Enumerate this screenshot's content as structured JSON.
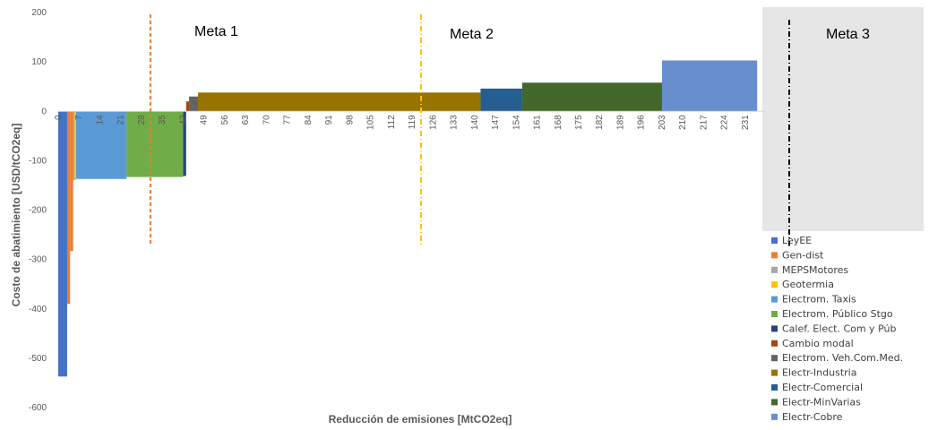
{
  "chart_data": {
    "type": "bar",
    "subtype": "marginal-abatement-cost-curve",
    "xlabel": "Reducción de emisiones [MtCO2eq]",
    "ylabel": "Costo de abatimiento [USD/tCO2eq]",
    "ylim": [
      -600,
      200
    ],
    "yticks": [
      200,
      100,
      0,
      -100,
      -200,
      -300,
      -400,
      -500,
      -600
    ],
    "xlim": [
      0,
      238
    ],
    "xticks": [
      0,
      7,
      14,
      21,
      28,
      35,
      42,
      49,
      56,
      63,
      70,
      77,
      84,
      91,
      98,
      105,
      112,
      119,
      126,
      133,
      140,
      147,
      154,
      161,
      168,
      175,
      182,
      189,
      196,
      203,
      210,
      217,
      224,
      231
    ],
    "grid": false,
    "legend_position": "bottom-right",
    "series": [
      {
        "name": "LeyEE",
        "x_start": 0,
        "x_end": 3,
        "value": -537,
        "color": "#4472C4"
      },
      {
        "name": "Gen-dist",
        "x_start": 3,
        "x_end": 4,
        "value": -390,
        "color": "#ED7D31"
      },
      {
        "name": "Gen-dist",
        "x_start": 4,
        "x_end": 5,
        "value": -283,
        "color": "#ED7D31"
      },
      {
        "name": "MEPSMotores",
        "x_start": 5,
        "x_end": 5.5,
        "value": -140,
        "color": "#A5A5A5"
      },
      {
        "name": "Geotermia",
        "x_start": 5.5,
        "x_end": 6,
        "value": -139,
        "color": "#FFC000"
      },
      {
        "name": "Electrom. Taxis",
        "x_start": 6,
        "x_end": 23,
        "value": -137,
        "color": "#5B9BD5"
      },
      {
        "name": "Electrom. Público Stgo",
        "x_start": 23,
        "x_end": 42,
        "value": -133,
        "color": "#70AD47"
      },
      {
        "name": "Calef. Elect. Com y Púb",
        "x_start": 42,
        "x_end": 43,
        "value": -131,
        "color": "#264478"
      },
      {
        "name": "Cambio modal",
        "x_start": 43,
        "x_end": 44,
        "value": 20,
        "color": "#9E480E"
      },
      {
        "name": "Electrom. Veh.Com.Med.",
        "x_start": 44,
        "x_end": 47,
        "value": 30,
        "color": "#636363"
      },
      {
        "name": "Electr-Industria",
        "x_start": 47,
        "x_end": 142,
        "value": 38,
        "color": "#997300"
      },
      {
        "name": "Electr-Comercial",
        "x_start": 142,
        "x_end": 156,
        "value": 46,
        "color": "#255E91"
      },
      {
        "name": "Electr-MinVarias",
        "x_start": 156,
        "x_end": 203,
        "value": 58,
        "color": "#43682B"
      },
      {
        "name": "Electr-Cobre",
        "x_start": 203,
        "x_end": 235,
        "value": 103,
        "color": "#698ED0"
      }
    ],
    "legend": [
      {
        "name": "LeyEE",
        "color": "#4472C4"
      },
      {
        "name": "Gen-dist",
        "color": "#ED7D31"
      },
      {
        "name": "MEPSMotores",
        "color": "#A5A5A5"
      },
      {
        "name": "Geotermia",
        "color": "#FFC000"
      },
      {
        "name": "Electrom. Taxis",
        "color": "#5B9BD5"
      },
      {
        "name": "Electrom. Público Stgo",
        "color": "#70AD47"
      },
      {
        "name": "Calef. Elect. Com y Púb",
        "color": "#264478"
      },
      {
        "name": "Cambio modal",
        "color": "#9E480E"
      },
      {
        "name": "Electrom. Veh.Com.Med.",
        "color": "#636363"
      },
      {
        "name": "Electr-Industria",
        "color": "#997300"
      },
      {
        "name": "Electr-Comercial",
        "color": "#255E91"
      },
      {
        "name": "Electr-MinVarias",
        "color": "#43682B"
      },
      {
        "name": "Electr-Cobre",
        "color": "#698ED0"
      }
    ],
    "annotations": [
      {
        "label": "Meta 1",
        "x": 31,
        "style": "dashed",
        "color": "#ED7D31",
        "y_from": 200,
        "y_to": -240
      },
      {
        "label": "Meta 2",
        "x": 122,
        "style": "dash-dot",
        "color": "#FFC000",
        "y_from": 200,
        "y_to": -240
      },
      {
        "label": "Meta 3",
        "x": 250,
        "style": "dash-dot",
        "color": "#000000",
        "y_from": 200,
        "y_to": -240,
        "region": "grey",
        "region_color": "#E7E6E6"
      }
    ]
  }
}
